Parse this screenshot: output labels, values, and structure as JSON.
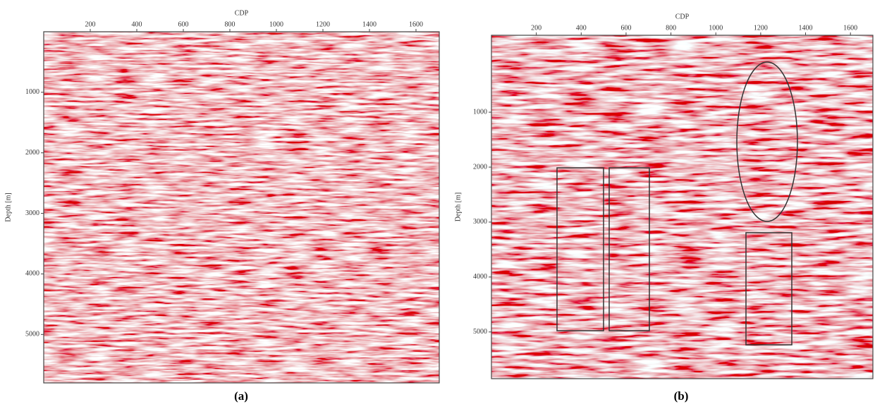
{
  "panels": [
    {
      "x_label": "CDP",
      "y_label": "Depth [m]",
      "label": "(a)",
      "xlim": [
        0,
        1700
      ],
      "ylim": [
        0,
        5800
      ],
      "xticks": [
        200,
        400,
        600,
        800,
        1000,
        1200,
        1400,
        1600
      ],
      "yticks": [
        1000,
        2000,
        3000,
        4000,
        5000
      ]
    },
    {
      "x_label": "CDP",
      "y_label": "Depth [m]",
      "label": "(b)",
      "xlim": [
        0,
        1700
      ],
      "ylim": [
        -400,
        5850
      ],
      "xticks": [
        200,
        400,
        600,
        800,
        1000,
        1200,
        1400,
        1600
      ],
      "yticks": [
        1000,
        2000,
        3000,
        4000,
        5000
      ]
    }
  ]
}
